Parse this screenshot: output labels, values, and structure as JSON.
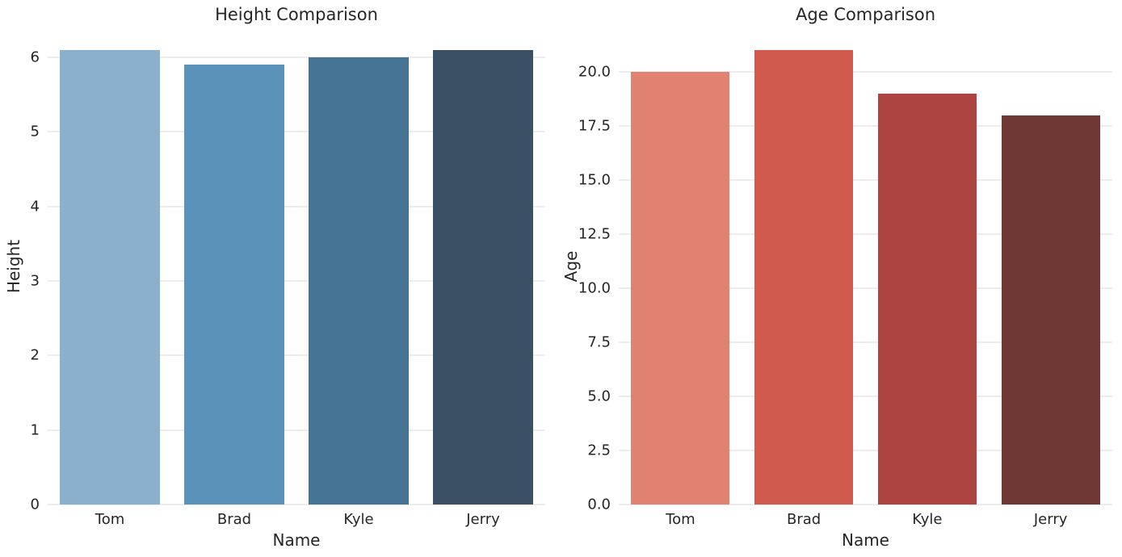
{
  "figure": {
    "background": "#ffffff",
    "text_color": "#262626",
    "grid_color": "#d9d9d9"
  },
  "chart_data": [
    {
      "type": "bar",
      "title": "Height Comparison",
      "xlabel": "Name",
      "ylabel": "Height",
      "categories": [
        "Tom",
        "Brad",
        "Kyle",
        "Jerry"
      ],
      "values": [
        6.1,
        5.9,
        6.0,
        6.1
      ],
      "bar_colors": [
        "#8ab0cd",
        "#5b92ba",
        "#457394",
        "#3b5064"
      ],
      "yticks": [
        0,
        1,
        2,
        3,
        4,
        5,
        6
      ],
      "ytick_labels": [
        "0",
        "1",
        "2",
        "3",
        "4",
        "5",
        "6"
      ],
      "ylim": [
        0,
        6.4
      ],
      "grid": true,
      "legend": "none"
    },
    {
      "type": "bar",
      "title": "Age Comparison",
      "xlabel": "Name",
      "ylabel": "Age",
      "categories": [
        "Tom",
        "Brad",
        "Kyle",
        "Jerry"
      ],
      "values": [
        20,
        21,
        19,
        18
      ],
      "bar_colors": [
        "#e08171",
        "#d15a4f",
        "#ae4441",
        "#703835"
      ],
      "yticks": [
        0,
        2.5,
        5,
        7.5,
        10,
        12.5,
        15,
        17.5,
        20
      ],
      "ytick_labels": [
        "0.0",
        "2.5",
        "5.0",
        "7.5",
        "10.0",
        "12.5",
        "15.0",
        "17.5",
        "20.0"
      ],
      "ylim": [
        0,
        22.05
      ],
      "grid": true,
      "legend": "none"
    }
  ]
}
